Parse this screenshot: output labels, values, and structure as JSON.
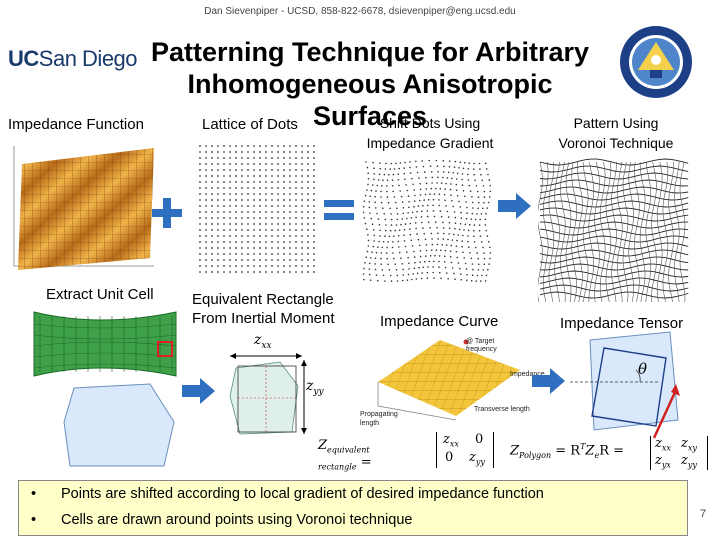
{
  "header": {
    "contact": "Dan Sievenpiper - UCSD, 858-822-6678, dsievenpiper@eng.ucsd.edu",
    "logo_uc": "UC",
    "logo_sd": "San Diego",
    "title_line1": "Patterning Technique for Arbitrary",
    "title_line2": "Inhomogeneous Anisotropic Surfaces"
  },
  "labels": {
    "impedance_function": "Impedance Function",
    "lattice_of_dots": "Lattice of Dots",
    "shift_dots_1": "Shift Dots Using",
    "shift_dots_2": "Impedance Gradient",
    "pattern_1": "Pattern Using",
    "pattern_2": "Voronoi Technique",
    "extract_unit_cell": "Extract Unit Cell",
    "equiv_rect_1": "Equivalent Rectangle",
    "equiv_rect_2": "From Inertial Moment",
    "impedance_curve": "Impedance Curve",
    "impedance_tensor": "Impedance Tensor"
  },
  "annotations": {
    "target_freq_1": "@ Target",
    "target_freq_2": "frequency",
    "impedance": "Impedance",
    "propagating_1": "Propagating",
    "propagating_2": "length",
    "transverse": "Transverse length",
    "zxx": "z",
    "zxx_sub": "xx",
    "zyy": "z",
    "zyy_sub": "yy",
    "theta": "θ"
  },
  "equations": {
    "equiv_lhs": "Z",
    "equiv_lhs_sub1": "equivalent",
    "equiv_lhs_sub2": "rectangle",
    "equiv_m11": "z",
    "equiv_m11_sub": "xx",
    "equiv_m12": "0",
    "equiv_m21": "0",
    "equiv_m22": "z",
    "equiv_m22_sub": "yy",
    "poly_lhs": "Z",
    "poly_lhs_sub": "Polygon",
    "poly_rhs": "= R",
    "poly_rhs_sup": "T",
    "poly_rhs2": "Z",
    "poly_rhs2_sub": "e",
    "poly_rhs3": "R =",
    "pm11": "z",
    "pm11_sub": "xx",
    "pm12": "z",
    "pm12_sub": "xy",
    "pm21": "z",
    "pm21_sub": "yx",
    "pm22": "z",
    "pm22_sub": "yy"
  },
  "bullets": [
    "Points are shifted according to local gradient of desired impedance function",
    "Cells are drawn around points using Voronoi technique"
  ],
  "bullet_symbol": "•",
  "page_number": "7",
  "colors": {
    "arrow": "#2f6fc0",
    "plus": "#2f6fc0",
    "surface_orange": "#d6902a",
    "unit_cell_green": "#3fa04a",
    "unit_cell_box": "#e02020",
    "tensor_arrow": "#d02020",
    "curve_yellow": "#f2c53a",
    "cell_blue": "#d9e9fb",
    "bullet_bg": "#ffffc9"
  }
}
